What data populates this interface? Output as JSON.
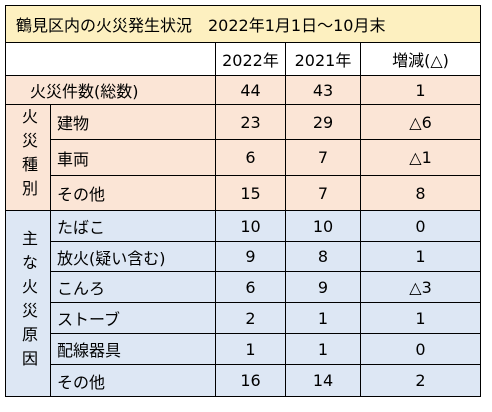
{
  "title": "鶴見区内の火災発生状況　2022年1月1日～10月末",
  "header": [
    "2022年",
    "2021年",
    "増減(△)"
  ],
  "total": {
    "label": "火災件数(総数)",
    "values": [
      44,
      43,
      1
    ]
  },
  "groups": [
    {
      "label": "火災種別",
      "rows": [
        {
          "label": "建物",
          "values": [
            23,
            29,
            "△6"
          ]
        },
        {
          "label": "車両",
          "values": [
            6,
            7,
            "△1"
          ]
        },
        {
          "label": "その他",
          "values": [
            15,
            7,
            8
          ]
        }
      ]
    },
    {
      "label": "主な火災原因",
      "rows": [
        {
          "label": "たばこ",
          "values": [
            10,
            10,
            0
          ]
        },
        {
          "label": "放火(疑い含む)",
          "values": [
            9,
            8,
            1
          ]
        },
        {
          "label": "こんろ",
          "values": [
            6,
            9,
            "△3"
          ]
        },
        {
          "label": "ストーブ",
          "values": [
            2,
            1,
            1
          ]
        },
        {
          "label": "配線器具",
          "values": [
            1,
            1,
            0
          ]
        },
        {
          "label": "その他",
          "values": [
            16,
            14,
            2
          ]
        }
      ]
    }
  ]
}
